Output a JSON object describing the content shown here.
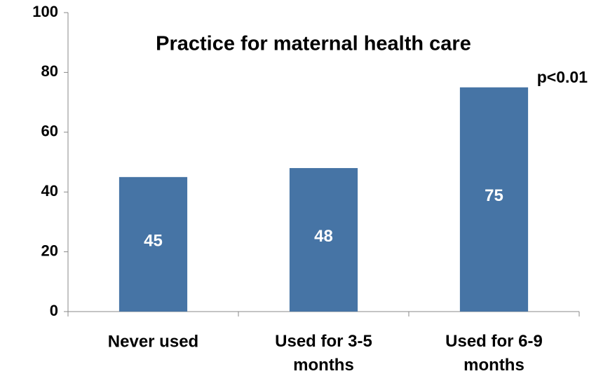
{
  "chart_data": {
    "type": "bar",
    "title": "Practice for maternal health care",
    "categories": [
      "Never used",
      "Used for 3-5 months",
      "Used for 6-9 months"
    ],
    "values": [
      45,
      48,
      75
    ],
    "color": "#4674a5",
    "ylim": [
      0,
      100
    ],
    "yticks": [
      0,
      20,
      40,
      60,
      80,
      100
    ],
    "grid": false,
    "annotations": [
      "p<0.01"
    ]
  }
}
